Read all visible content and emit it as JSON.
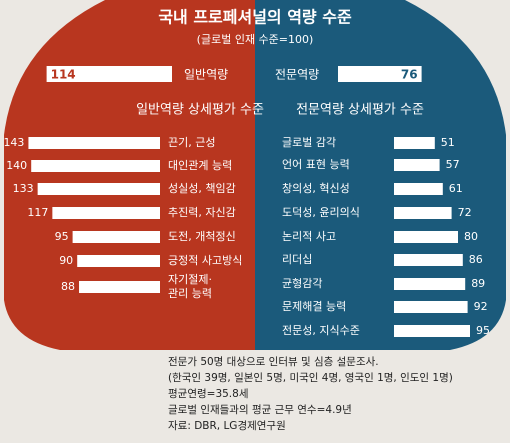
{
  "chart_data": {
    "type": "bar",
    "title": "국내 프로페셔널의 역량 수준",
    "subtitle": "(글로벌 인재 수준=100)",
    "overall": {
      "categories": [
        "일반역량",
        "전문역량"
      ],
      "values": [
        114,
        76
      ]
    },
    "series": [
      {
        "name": "일반역량 상세평가 수준",
        "categories": [
          "끈기, 근성",
          "대인관계 능력",
          "성실성, 책임감",
          "추진력, 자신감",
          "도전, 개척정신",
          "긍정적 사고방식",
          "자기절제·\n관리 능력"
        ],
        "values": [
          143,
          140,
          133,
          117,
          95,
          90,
          88
        ]
      },
      {
        "name": "전문역량 상세평가 수준",
        "categories": [
          "글로벌 감각",
          "언어 표현 능력",
          "창의성, 혁신성",
          "도덕성, 윤리의식",
          "논리적 사고",
          "리더십",
          "균형감각",
          "문제해결 능력",
          "전문성, 지식수준"
        ],
        "values": [
          51,
          57,
          61,
          72,
          80,
          86,
          89,
          92,
          95
        ]
      }
    ],
    "notes": [
      "전문가 50명 대상으로 인터뷰 및 심층 설문조사.",
      "(한국인 39명, 일본인 5명, 미국인 4명, 영국인 1명, 인도인 1명)",
      "평균연령=35.8세",
      "글로벌 인재들과의 평균 근무 연수=4.9년",
      "자료: DBR, LG경제연구원"
    ]
  }
}
